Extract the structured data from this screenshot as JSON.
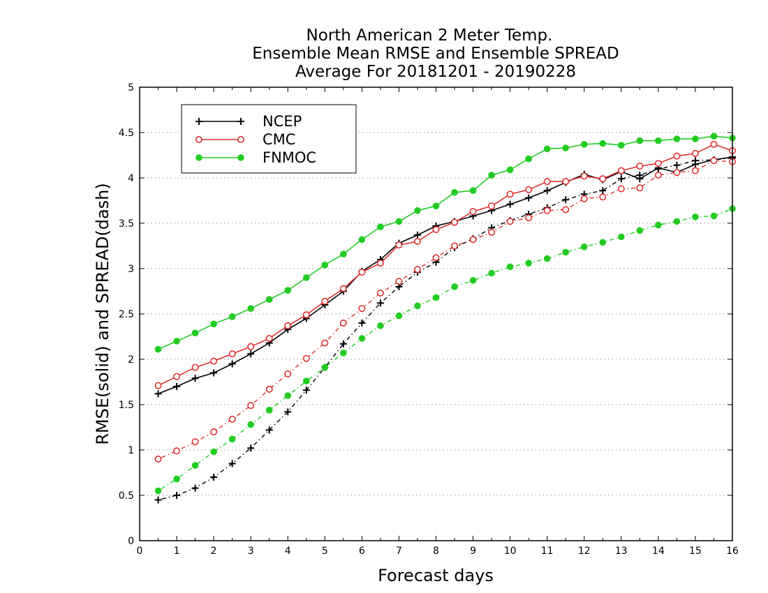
{
  "chart_data": {
    "type": "line",
    "title_lines": [
      "North American 2 Meter Temp.",
      "Ensemble Mean RMSE and Ensemble SPREAD",
      "Average For 20181201 - 20190228"
    ],
    "xlabel": "Forecast days",
    "ylabel": "RMSE(solid) and SPREAD(dash)",
    "xlim": [
      0,
      16
    ],
    "ylim": [
      0,
      5
    ],
    "x_ticks": [
      "0",
      "1",
      "2",
      "3",
      "4",
      "5",
      "6",
      "7",
      "8",
      "9",
      "10",
      "11",
      "12",
      "13",
      "14",
      "15",
      "16"
    ],
    "y_ticks": [
      "0",
      "0.5",
      "1",
      "1.5",
      "2",
      "2.5",
      "3",
      "3.5",
      "4",
      "4.5",
      "5"
    ],
    "grid": "dotted horizontal",
    "legend_position": "top-left",
    "legend": [
      {
        "label": "NCEP",
        "color": "#000000",
        "marker": "plus"
      },
      {
        "label": "CMC",
        "color": "#e03030",
        "marker": "open-circle"
      },
      {
        "label": "FNMOC",
        "color": "#22cc22",
        "marker": "filled-circle"
      }
    ],
    "x": [
      0.5,
      1,
      1.5,
      2,
      2.5,
      3,
      3.5,
      4,
      4.5,
      5,
      5.5,
      6,
      6.5,
      7,
      7.5,
      8,
      8.5,
      9,
      9.5,
      10,
      10.5,
      11,
      11.5,
      12,
      12.5,
      13,
      13.5,
      14,
      14.5,
      15,
      15.5,
      16
    ],
    "series": [
      {
        "name": "NCEP",
        "kind": "RMSE",
        "color": "#000000",
        "marker": "plus",
        "line": "solid",
        "values": [
          1.62,
          1.7,
          1.79,
          1.85,
          1.95,
          2.06,
          2.18,
          2.33,
          2.45,
          2.6,
          2.75,
          2.97,
          3.1,
          3.28,
          3.37,
          3.47,
          3.52,
          3.58,
          3.64,
          3.71,
          3.78,
          3.86,
          3.95,
          4.04,
          3.98,
          4.07,
          3.99,
          4.11,
          4.06,
          4.15,
          4.2,
          4.23
        ]
      },
      {
        "name": "NCEP",
        "kind": "SPREAD",
        "color": "#000000",
        "marker": "plus",
        "line": "dash",
        "values": [
          0.45,
          0.5,
          0.58,
          0.7,
          0.85,
          1.02,
          1.22,
          1.42,
          1.66,
          1.91,
          2.17,
          2.4,
          2.62,
          2.8,
          2.96,
          3.07,
          3.23,
          3.33,
          3.45,
          3.53,
          3.6,
          3.67,
          3.76,
          3.82,
          3.86,
          3.99,
          4.03,
          4.1,
          4.14,
          4.19,
          4.2,
          4.22
        ]
      },
      {
        "name": "CMC",
        "kind": "RMSE",
        "color": "#e03030",
        "marker": "open-circle",
        "line": "solid",
        "values": [
          1.71,
          1.81,
          1.91,
          1.98,
          2.06,
          2.14,
          2.23,
          2.37,
          2.49,
          2.64,
          2.78,
          2.96,
          3.06,
          3.26,
          3.3,
          3.43,
          3.51,
          3.63,
          3.69,
          3.82,
          3.87,
          3.96,
          3.96,
          4.02,
          3.99,
          4.08,
          4.13,
          4.16,
          4.24,
          4.27,
          4.37,
          4.3
        ]
      },
      {
        "name": "CMC",
        "kind": "SPREAD",
        "color": "#e03030",
        "marker": "open-circle",
        "line": "dash",
        "values": [
          0.9,
          0.99,
          1.09,
          1.2,
          1.34,
          1.49,
          1.67,
          1.84,
          2.01,
          2.18,
          2.4,
          2.56,
          2.73,
          2.86,
          2.99,
          3.12,
          3.25,
          3.32,
          3.4,
          3.52,
          3.56,
          3.64,
          3.65,
          3.77,
          3.79,
          3.88,
          3.89,
          4.03,
          4.06,
          4.08,
          4.19,
          4.18
        ]
      },
      {
        "name": "FNMOC",
        "kind": "RMSE",
        "color": "#22cc22",
        "marker": "filled-circle",
        "line": "solid",
        "values": [
          2.11,
          2.2,
          2.29,
          2.39,
          2.47,
          2.56,
          2.66,
          2.76,
          2.9,
          3.04,
          3.16,
          3.32,
          3.46,
          3.52,
          3.64,
          3.69,
          3.84,
          3.86,
          4.03,
          4.09,
          4.21,
          4.32,
          4.33,
          4.37,
          4.38,
          4.36,
          4.41,
          4.41,
          4.43,
          4.43,
          4.46,
          4.44
        ]
      },
      {
        "name": "FNMOC",
        "kind": "SPREAD",
        "color": "#22cc22",
        "marker": "filled-circle",
        "line": "dash",
        "values": [
          0.55,
          0.68,
          0.83,
          0.98,
          1.12,
          1.28,
          1.44,
          1.6,
          1.76,
          1.91,
          2.07,
          2.23,
          2.37,
          2.48,
          2.59,
          2.68,
          2.8,
          2.87,
          2.95,
          3.02,
          3.06,
          3.11,
          3.18,
          3.24,
          3.29,
          3.35,
          3.42,
          3.48,
          3.52,
          3.57,
          3.58,
          3.66
        ]
      }
    ]
  }
}
